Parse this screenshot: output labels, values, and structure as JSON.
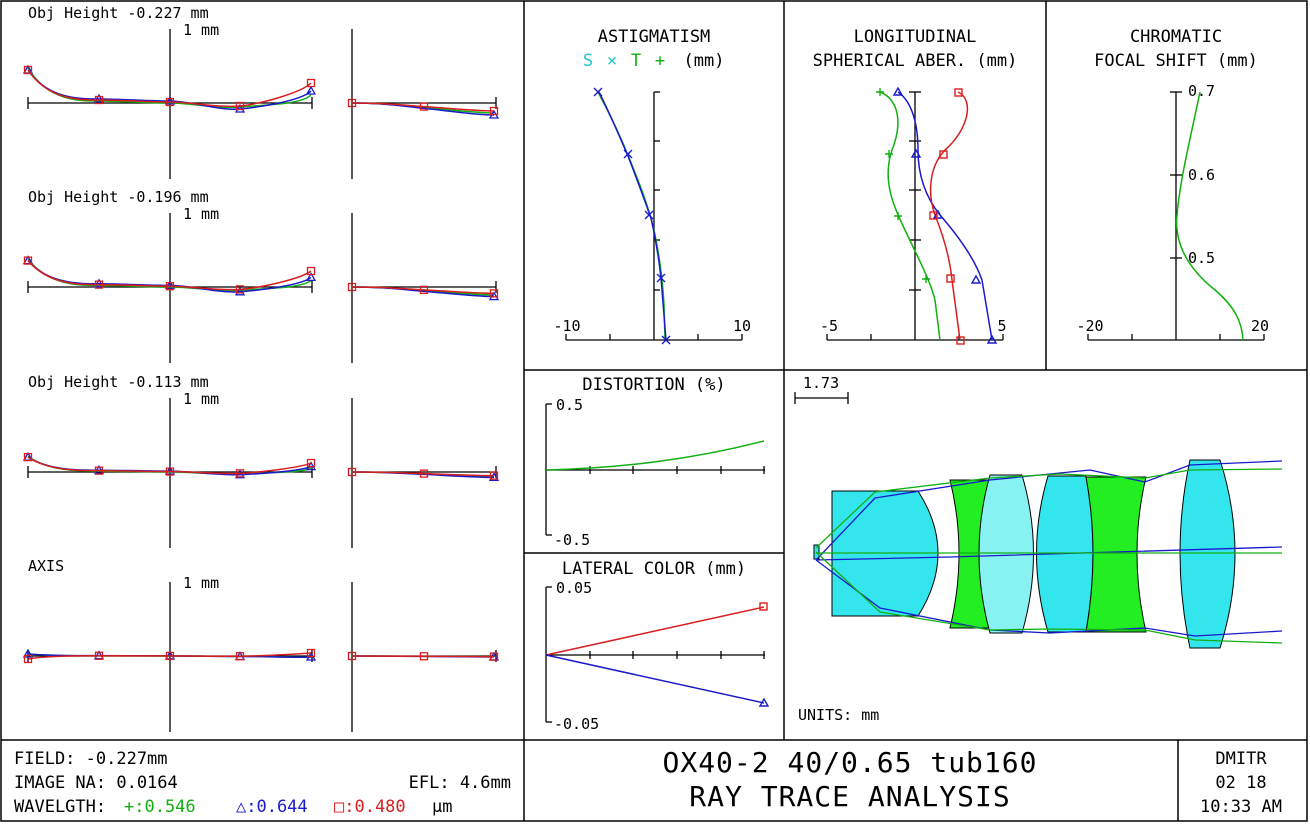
{
  "fans": [
    {
      "label": "Obj Height -0.227 mm",
      "scale": "1 mm"
    },
    {
      "label": "Obj Height -0.196 mm",
      "scale": "1 mm"
    },
    {
      "label": "Obj Height -0.113 mm",
      "scale": "1 mm"
    },
    {
      "label": "AXIS",
      "scale": "1 mm"
    }
  ],
  "astigmatism": {
    "title": "ASTIGMATISM",
    "legend_s": "S",
    "legend_x": "×",
    "legend_t": "T",
    "legend_plus": "+",
    "legend_unit": "(mm)",
    "xmin_label": "-10",
    "xmax_label": "10"
  },
  "longitudinal": {
    "title1": "LONGITUDINAL",
    "title2": "SPHERICAL ABER. (mm)",
    "xmin_label": "-5",
    "xmax_label": "5"
  },
  "chromatic": {
    "title1": "CHROMATIC",
    "title2": "FOCAL SHIFT (mm)",
    "ticks": [
      "0.7",
      "0.6",
      "0.5"
    ],
    "xmin_label": "-20",
    "xmax_label": "20"
  },
  "distortion": {
    "title": "DISTORTION (%)",
    "ymax": "0.5",
    "ymin": "-0.5"
  },
  "lateral": {
    "title": "LATERAL COLOR (mm)",
    "ymax": "0.05",
    "ymin": "-0.05"
  },
  "layout_view": {
    "scale_label": "1.73",
    "units": "UNITS: mm"
  },
  "footer": {
    "field": "FIELD: -0.227mm",
    "image_na": "IMAGE NA: 0.0164",
    "efl": "EFL: 4.6mm",
    "wavelength_label": "WAVELGTH:",
    "wl1": "+:0.546",
    "wl2": "△:0.644",
    "wl3": "□:0.480",
    "wl_unit": "μm",
    "title1": "OX40-2 40/0.65 tub160",
    "title2": "RAY TRACE ANALYSIS",
    "author": "DMITR",
    "date": "02 18",
    "time": "10:33 AM"
  },
  "colors": {
    "green": "#11b011",
    "blue": "#1a1acc",
    "red": "#d81e1e",
    "cyan": "#22c8c8",
    "lens_cyan": "#33e6ee",
    "lens_light": "#88f2f2",
    "lens_green": "#22ee22"
  }
}
